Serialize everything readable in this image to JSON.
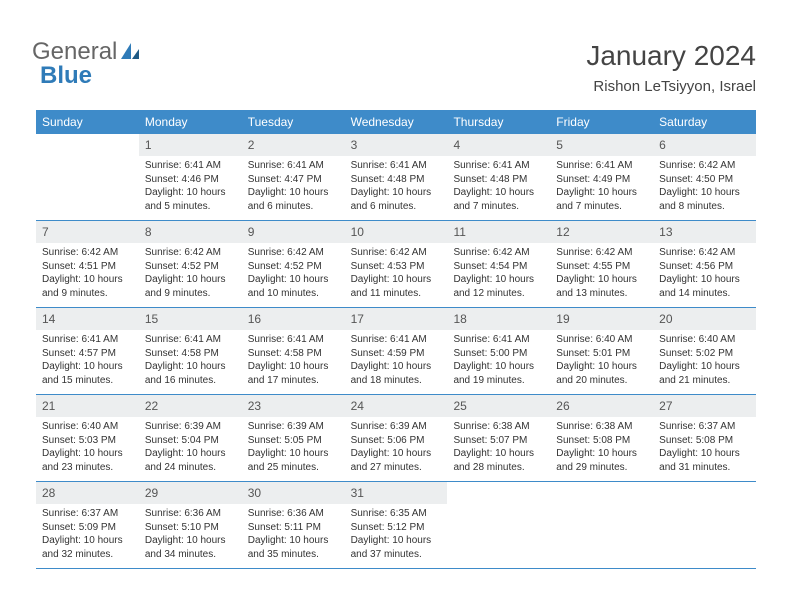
{
  "logo": {
    "text1": "General",
    "text2": "Blue"
  },
  "title": "January 2024",
  "location": "Rishon LeTsiyyon, Israel",
  "colors": {
    "header_bg": "#3e8bc9",
    "header_text": "#ffffff",
    "daynum_bg": "#eceeef",
    "daynum_text": "#555555",
    "body_text": "#333333",
    "logo_gray": "#666666",
    "logo_blue": "#2f7bb8",
    "border": "#3e8bc9"
  },
  "day_headers": [
    "Sunday",
    "Monday",
    "Tuesday",
    "Wednesday",
    "Thursday",
    "Friday",
    "Saturday"
  ],
  "weeks": [
    [
      {
        "num": "",
        "sunrise": "",
        "sunset": "",
        "daylight": ""
      },
      {
        "num": "1",
        "sunrise": "Sunrise: 6:41 AM",
        "sunset": "Sunset: 4:46 PM",
        "daylight": "Daylight: 10 hours and 5 minutes."
      },
      {
        "num": "2",
        "sunrise": "Sunrise: 6:41 AM",
        "sunset": "Sunset: 4:47 PM",
        "daylight": "Daylight: 10 hours and 6 minutes."
      },
      {
        "num": "3",
        "sunrise": "Sunrise: 6:41 AM",
        "sunset": "Sunset: 4:48 PM",
        "daylight": "Daylight: 10 hours and 6 minutes."
      },
      {
        "num": "4",
        "sunrise": "Sunrise: 6:41 AM",
        "sunset": "Sunset: 4:48 PM",
        "daylight": "Daylight: 10 hours and 7 minutes."
      },
      {
        "num": "5",
        "sunrise": "Sunrise: 6:41 AM",
        "sunset": "Sunset: 4:49 PM",
        "daylight": "Daylight: 10 hours and 7 minutes."
      },
      {
        "num": "6",
        "sunrise": "Sunrise: 6:42 AM",
        "sunset": "Sunset: 4:50 PM",
        "daylight": "Daylight: 10 hours and 8 minutes."
      }
    ],
    [
      {
        "num": "7",
        "sunrise": "Sunrise: 6:42 AM",
        "sunset": "Sunset: 4:51 PM",
        "daylight": "Daylight: 10 hours and 9 minutes."
      },
      {
        "num": "8",
        "sunrise": "Sunrise: 6:42 AM",
        "sunset": "Sunset: 4:52 PM",
        "daylight": "Daylight: 10 hours and 9 minutes."
      },
      {
        "num": "9",
        "sunrise": "Sunrise: 6:42 AM",
        "sunset": "Sunset: 4:52 PM",
        "daylight": "Daylight: 10 hours and 10 minutes."
      },
      {
        "num": "10",
        "sunrise": "Sunrise: 6:42 AM",
        "sunset": "Sunset: 4:53 PM",
        "daylight": "Daylight: 10 hours and 11 minutes."
      },
      {
        "num": "11",
        "sunrise": "Sunrise: 6:42 AM",
        "sunset": "Sunset: 4:54 PM",
        "daylight": "Daylight: 10 hours and 12 minutes."
      },
      {
        "num": "12",
        "sunrise": "Sunrise: 6:42 AM",
        "sunset": "Sunset: 4:55 PM",
        "daylight": "Daylight: 10 hours and 13 minutes."
      },
      {
        "num": "13",
        "sunrise": "Sunrise: 6:42 AM",
        "sunset": "Sunset: 4:56 PM",
        "daylight": "Daylight: 10 hours and 14 minutes."
      }
    ],
    [
      {
        "num": "14",
        "sunrise": "Sunrise: 6:41 AM",
        "sunset": "Sunset: 4:57 PM",
        "daylight": "Daylight: 10 hours and 15 minutes."
      },
      {
        "num": "15",
        "sunrise": "Sunrise: 6:41 AM",
        "sunset": "Sunset: 4:58 PM",
        "daylight": "Daylight: 10 hours and 16 minutes."
      },
      {
        "num": "16",
        "sunrise": "Sunrise: 6:41 AM",
        "sunset": "Sunset: 4:58 PM",
        "daylight": "Daylight: 10 hours and 17 minutes."
      },
      {
        "num": "17",
        "sunrise": "Sunrise: 6:41 AM",
        "sunset": "Sunset: 4:59 PM",
        "daylight": "Daylight: 10 hours and 18 minutes."
      },
      {
        "num": "18",
        "sunrise": "Sunrise: 6:41 AM",
        "sunset": "Sunset: 5:00 PM",
        "daylight": "Daylight: 10 hours and 19 minutes."
      },
      {
        "num": "19",
        "sunrise": "Sunrise: 6:40 AM",
        "sunset": "Sunset: 5:01 PM",
        "daylight": "Daylight: 10 hours and 20 minutes."
      },
      {
        "num": "20",
        "sunrise": "Sunrise: 6:40 AM",
        "sunset": "Sunset: 5:02 PM",
        "daylight": "Daylight: 10 hours and 21 minutes."
      }
    ],
    [
      {
        "num": "21",
        "sunrise": "Sunrise: 6:40 AM",
        "sunset": "Sunset: 5:03 PM",
        "daylight": "Daylight: 10 hours and 23 minutes."
      },
      {
        "num": "22",
        "sunrise": "Sunrise: 6:39 AM",
        "sunset": "Sunset: 5:04 PM",
        "daylight": "Daylight: 10 hours and 24 minutes."
      },
      {
        "num": "23",
        "sunrise": "Sunrise: 6:39 AM",
        "sunset": "Sunset: 5:05 PM",
        "daylight": "Daylight: 10 hours and 25 minutes."
      },
      {
        "num": "24",
        "sunrise": "Sunrise: 6:39 AM",
        "sunset": "Sunset: 5:06 PM",
        "daylight": "Daylight: 10 hours and 27 minutes."
      },
      {
        "num": "25",
        "sunrise": "Sunrise: 6:38 AM",
        "sunset": "Sunset: 5:07 PM",
        "daylight": "Daylight: 10 hours and 28 minutes."
      },
      {
        "num": "26",
        "sunrise": "Sunrise: 6:38 AM",
        "sunset": "Sunset: 5:08 PM",
        "daylight": "Daylight: 10 hours and 29 minutes."
      },
      {
        "num": "27",
        "sunrise": "Sunrise: 6:37 AM",
        "sunset": "Sunset: 5:08 PM",
        "daylight": "Daylight: 10 hours and 31 minutes."
      }
    ],
    [
      {
        "num": "28",
        "sunrise": "Sunrise: 6:37 AM",
        "sunset": "Sunset: 5:09 PM",
        "daylight": "Daylight: 10 hours and 32 minutes."
      },
      {
        "num": "29",
        "sunrise": "Sunrise: 6:36 AM",
        "sunset": "Sunset: 5:10 PM",
        "daylight": "Daylight: 10 hours and 34 minutes."
      },
      {
        "num": "30",
        "sunrise": "Sunrise: 6:36 AM",
        "sunset": "Sunset: 5:11 PM",
        "daylight": "Daylight: 10 hours and 35 minutes."
      },
      {
        "num": "31",
        "sunrise": "Sunrise: 6:35 AM",
        "sunset": "Sunset: 5:12 PM",
        "daylight": "Daylight: 10 hours and 37 minutes."
      },
      {
        "num": "",
        "sunrise": "",
        "sunset": "",
        "daylight": ""
      },
      {
        "num": "",
        "sunrise": "",
        "sunset": "",
        "daylight": ""
      },
      {
        "num": "",
        "sunrise": "",
        "sunset": "",
        "daylight": ""
      }
    ]
  ]
}
